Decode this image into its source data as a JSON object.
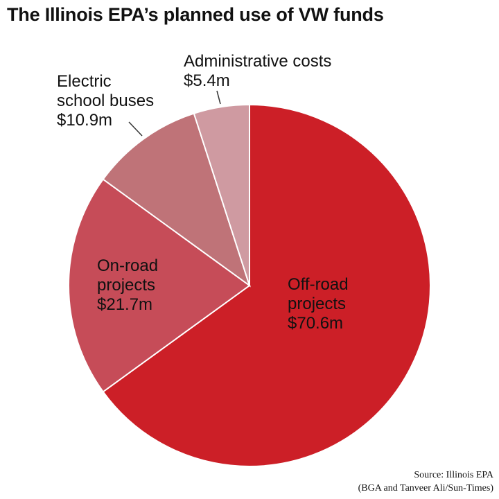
{
  "title": "The Illinois EPA’s planned use of VW funds",
  "source_line1": "Source: Illinois EPA",
  "source_line2": "(BGA and Tanveer Ali/Sun-Times)",
  "chart_data": {
    "type": "pie",
    "unit": "$ millions",
    "slices": [
      {
        "label": "Off-road projects",
        "value": 70.6,
        "value_label": "$70.6m",
        "color": "#cc1f27",
        "label_lines": [
          "Off-road",
          "projects"
        ]
      },
      {
        "label": "On-road projects",
        "value": 21.7,
        "value_label": "$21.7m",
        "color": "#c64c58",
        "label_lines": [
          "On-road",
          "projects"
        ]
      },
      {
        "label": "Electric school buses",
        "value": 10.9,
        "value_label": "$10.9m",
        "color": "#bf7378",
        "label_lines": [
          "Electric",
          "school buses"
        ]
      },
      {
        "label": "Administrative costs",
        "value": 5.4,
        "value_label": "$5.4m",
        "color": "#cf9aa1",
        "label_lines": [
          "Administrative costs"
        ]
      }
    ]
  }
}
